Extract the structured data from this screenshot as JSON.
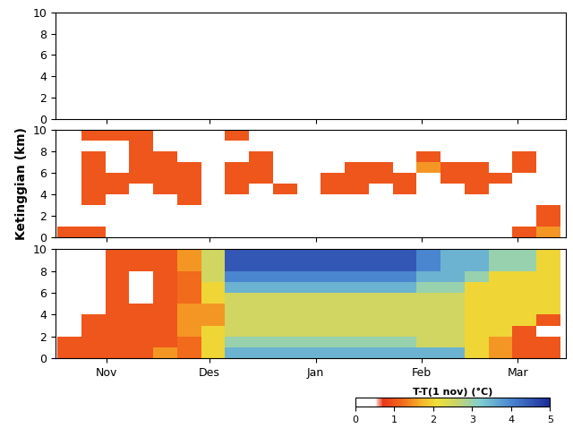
{
  "chart_data": [
    {
      "type": "heatmap",
      "x": [
        -11,
        -4,
        3,
        10,
        17,
        24,
        31,
        38,
        45,
        52,
        59,
        66,
        73,
        80,
        87,
        94,
        101,
        108,
        115,
        122,
        129
      ],
      "y": [
        0.5,
        1.5,
        2.5,
        3.5,
        4.5,
        5.5,
        6.5,
        7.5,
        8.5,
        9.5
      ],
      "values": [
        [
          0,
          0,
          0,
          0,
          0,
          0,
          0,
          0,
          0,
          0,
          0,
          0,
          0,
          0,
          0,
          0,
          0,
          0,
          0,
          0,
          0
        ],
        [
          0,
          0,
          0,
          0,
          0,
          0,
          0,
          0,
          0,
          0,
          0,
          0,
          0,
          0,
          0,
          0,
          0,
          0,
          0,
          0,
          0
        ],
        [
          0,
          0,
          0,
          0,
          0,
          0,
          0,
          0,
          0,
          0,
          0,
          0,
          0,
          0,
          0,
          0,
          0,
          0,
          0,
          0,
          0
        ],
        [
          0,
          0,
          0,
          0,
          0,
          0,
          0,
          0,
          0,
          0,
          0,
          0,
          0,
          0,
          0,
          0,
          0,
          0,
          0,
          0,
          0
        ],
        [
          0,
          0,
          0,
          0,
          0,
          0,
          0,
          0,
          0,
          0,
          0,
          0,
          0,
          0,
          0,
          0,
          0,
          0,
          0,
          0,
          0
        ],
        [
          0,
          0,
          0,
          0,
          0,
          0,
          0,
          0,
          0,
          0,
          0,
          0,
          0,
          0,
          0,
          0,
          0,
          0,
          0,
          0,
          0
        ],
        [
          0,
          0,
          0,
          0,
          0,
          0,
          0,
          0,
          0,
          0,
          0,
          0,
          0,
          0,
          0,
          0,
          0,
          0,
          0,
          0,
          0
        ],
        [
          0,
          0,
          0,
          0,
          0,
          0,
          0,
          0,
          0,
          0,
          0,
          0,
          0,
          0,
          0,
          0,
          0,
          0,
          0,
          0,
          0
        ],
        [
          0,
          0,
          0,
          0,
          0,
          0,
          0,
          0,
          0,
          0,
          0,
          0,
          0,
          0,
          0,
          0,
          0,
          0,
          0,
          0,
          0
        ],
        [
          0,
          0,
          0,
          0,
          0,
          0,
          0,
          0,
          0,
          0,
          0,
          0,
          0,
          0,
          0,
          0,
          0,
          0,
          0,
          0,
          0
        ]
      ],
      "xlim": [
        -15,
        134
      ],
      "ylim": [
        0,
        10
      ],
      "xticks": [
        {
          "value": 0,
          "label": "Nov"
        },
        {
          "value": 30,
          "label": "Des"
        },
        {
          "value": 61,
          "label": "Jan"
        },
        {
          "value": 92,
          "label": "Feb"
        },
        {
          "value": 120,
          "label": "Mar"
        }
      ],
      "yticks": [
        0,
        2,
        4,
        6,
        8,
        10
      ],
      "tick_labels": "y"
    },
    {
      "type": "heatmap",
      "y_label": "Ketinggian (km)",
      "x": [
        -11,
        -4,
        3,
        10,
        17,
        24,
        31,
        38,
        45,
        52,
        59,
        66,
        73,
        80,
        87,
        94,
        101,
        108,
        115,
        122,
        129
      ],
      "y": [
        0.5,
        1.5,
        2.5,
        3.5,
        4.5,
        5.5,
        6.5,
        7.5,
        8.5,
        9.5
      ],
      "values": [
        [
          1,
          1,
          0,
          0,
          0,
          0,
          0,
          0,
          0,
          0,
          0,
          0,
          0,
          0,
          0,
          0,
          0,
          0,
          0,
          1,
          1.5
        ],
        [
          0,
          0,
          0,
          0,
          0,
          0,
          0,
          0,
          0,
          0,
          0,
          0,
          0,
          0,
          0,
          0,
          0,
          0,
          0,
          0,
          1
        ],
        [
          0,
          0,
          0,
          0,
          0,
          0,
          0,
          0,
          0,
          0,
          0,
          0,
          0,
          0,
          0,
          0,
          0,
          0,
          0,
          0,
          1
        ],
        [
          0,
          1,
          0,
          0,
          0,
          1,
          0,
          0,
          0,
          0,
          0,
          0,
          0,
          0,
          0,
          0,
          0,
          0,
          0,
          0,
          0
        ],
        [
          0,
          1,
          1,
          0,
          1,
          1,
          0,
          1,
          0,
          1,
          0,
          1,
          1,
          0,
          1,
          0,
          0,
          1,
          0,
          0,
          0
        ],
        [
          0,
          1,
          1,
          1,
          1,
          1,
          0,
          1,
          1,
          0,
          0,
          1,
          1,
          1,
          1,
          0,
          1,
          1,
          1,
          0,
          0
        ],
        [
          0,
          1,
          0,
          1,
          1,
          1,
          0,
          1,
          1,
          0,
          0,
          0,
          1,
          1,
          0,
          1.5,
          1,
          1,
          0,
          1,
          0
        ],
        [
          0,
          1,
          0,
          1,
          1,
          0,
          0,
          0,
          1,
          0,
          0,
          0,
          0,
          0,
          0,
          1,
          0,
          0,
          0,
          1,
          0
        ],
        [
          0,
          0,
          0,
          1,
          0,
          0,
          0,
          0,
          0,
          0,
          0,
          0,
          0,
          0,
          0,
          0,
          0,
          0,
          0,
          0,
          0
        ],
        [
          0,
          1,
          1,
          1,
          0,
          0,
          0,
          1,
          0,
          0,
          0,
          0,
          0,
          0,
          0,
          0,
          0,
          0,
          0,
          0,
          0
        ]
      ],
      "xlim": [
        -15,
        134
      ],
      "ylim": [
        0,
        10
      ],
      "xticks": [
        {
          "value": 0,
          "label": "Nov"
        },
        {
          "value": 30,
          "label": "Des"
        },
        {
          "value": 61,
          "label": "Jan"
        },
        {
          "value": 92,
          "label": "Feb"
        },
        {
          "value": 120,
          "label": "Mar"
        }
      ],
      "yticks": [
        0,
        2,
        4,
        6,
        8,
        10
      ],
      "tick_labels": "y"
    },
    {
      "type": "heatmap",
      "x": [
        -11,
        -4,
        3,
        10,
        17,
        24,
        31,
        38,
        45,
        52,
        59,
        66,
        73,
        80,
        87,
        94,
        101,
        108,
        115,
        122,
        129
      ],
      "y": [
        0.5,
        1.5,
        2.5,
        3.5,
        4.5,
        5.5,
        6.5,
        7.5,
        8.5,
        9.5
      ],
      "values": [
        [
          1,
          1,
          1,
          1,
          1.5,
          1.2,
          2,
          3.5,
          3.5,
          3.5,
          3.5,
          3.5,
          3.5,
          3.5,
          3.5,
          3.5,
          3.5,
          2,
          1.5,
          1,
          1
        ],
        [
          1,
          1,
          1,
          1,
          1,
          1.2,
          2,
          3,
          3,
          3,
          3,
          3,
          3,
          3,
          3,
          2.5,
          2.5,
          2,
          1.5,
          1,
          1
        ],
        [
          0,
          1,
          1,
          1,
          1,
          1.5,
          2,
          2.5,
          2.5,
          2.5,
          2.5,
          2.5,
          2.5,
          2.5,
          2.5,
          2.5,
          2.5,
          2,
          2,
          1,
          0
        ],
        [
          0,
          1,
          1,
          1,
          1,
          1.5,
          1.5,
          2.5,
          2.5,
          2.5,
          2.5,
          2.5,
          2.5,
          2.5,
          2.5,
          2.5,
          2.5,
          2,
          2,
          2,
          1
        ],
        [
          0,
          0,
          1,
          1,
          1,
          1.5,
          1.5,
          2.5,
          2.5,
          2.5,
          2.5,
          2.5,
          2.5,
          2.5,
          2.5,
          2.5,
          2.5,
          2,
          2,
          2,
          2
        ],
        [
          0,
          0,
          1,
          0,
          1,
          1.2,
          2,
          2.5,
          2.5,
          2.5,
          2.5,
          2.5,
          2.5,
          2.5,
          2.5,
          2.5,
          2.5,
          2,
          2,
          2,
          2
        ],
        [
          0,
          0,
          1,
          0,
          1,
          1.2,
          2,
          3.5,
          3.5,
          3.5,
          3.5,
          3.5,
          3.5,
          3.5,
          3.5,
          3,
          3,
          2,
          2,
          2,
          2
        ],
        [
          0,
          0,
          1,
          0,
          1,
          1.2,
          2.5,
          4,
          4,
          4,
          4,
          4,
          4,
          4,
          4,
          3.5,
          3.5,
          3,
          2,
          2,
          2
        ],
        [
          0,
          0,
          1,
          1,
          1,
          1.5,
          2.5,
          4.5,
          4.5,
          4.5,
          4.5,
          4.5,
          4.5,
          4.5,
          4.5,
          4,
          3.5,
          3.5,
          3,
          3,
          2
        ],
        [
          0,
          0,
          1,
          1,
          1,
          1.5,
          2.5,
          4.5,
          4.5,
          4.5,
          4.5,
          4.5,
          4.5,
          4.5,
          4.5,
          4,
          3.5,
          3.5,
          3,
          3,
          2
        ]
      ],
      "xlim": [
        -15,
        134
      ],
      "ylim": [
        0,
        10
      ],
      "xticks": [
        {
          "value": 0,
          "label": "Nov"
        },
        {
          "value": 30,
          "label": "Des"
        },
        {
          "value": 61,
          "label": "Jan"
        },
        {
          "value": 92,
          "label": "Feb"
        },
        {
          "value": 120,
          "label": "Mar"
        }
      ],
      "yticks": [
        0,
        2,
        4,
        6,
        8,
        10
      ],
      "colorbar": {
        "label": "T-T(1 nov) (°C)",
        "range": [
          0,
          5
        ],
        "ticks": [
          0,
          1,
          2,
          3,
          4,
          5
        ]
      }
    }
  ]
}
